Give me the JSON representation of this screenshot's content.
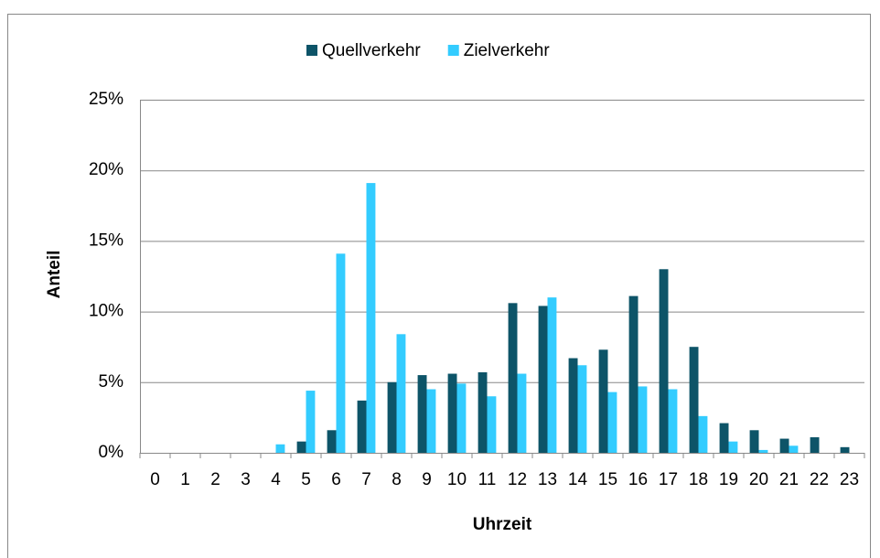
{
  "chart_data": {
    "type": "bar",
    "xlabel": "Uhrzeit",
    "ylabel": "Anteil",
    "categories": [
      "0",
      "1",
      "2",
      "3",
      "4",
      "5",
      "6",
      "7",
      "8",
      "9",
      "10",
      "11",
      "12",
      "13",
      "14",
      "15",
      "16",
      "17",
      "18",
      "19",
      "20",
      "21",
      "22",
      "23"
    ],
    "series": [
      {
        "name": "Quellverkehr",
        "color": "#0d5468",
        "values": [
          0,
          0,
          0,
          0,
          0,
          0.8,
          1.6,
          3.7,
          5.0,
          5.5,
          5.6,
          5.7,
          10.6,
          10.4,
          6.7,
          7.3,
          11.1,
          13.0,
          7.5,
          2.1,
          1.6,
          1.0,
          1.1,
          0.4
        ]
      },
      {
        "name": "Zielverkehr",
        "color": "#33ccff",
        "values": [
          0,
          0,
          0,
          0,
          0.6,
          4.4,
          14.1,
          19.1,
          8.4,
          4.5,
          4.9,
          4.0,
          5.6,
          11.0,
          6.2,
          4.3,
          4.7,
          4.5,
          2.6,
          0.8,
          0.2,
          0.5,
          0,
          0
        ]
      }
    ],
    "ylim": [
      0,
      25
    ],
    "yticks": [
      {
        "value": 0,
        "label": "0%"
      },
      {
        "value": 5,
        "label": "5%"
      },
      {
        "value": 10,
        "label": "10%"
      },
      {
        "value": 15,
        "label": "15%"
      },
      {
        "value": 20,
        "label": "20%"
      },
      {
        "value": 25,
        "label": "25%"
      }
    ],
    "grid": true,
    "legend": "top"
  }
}
